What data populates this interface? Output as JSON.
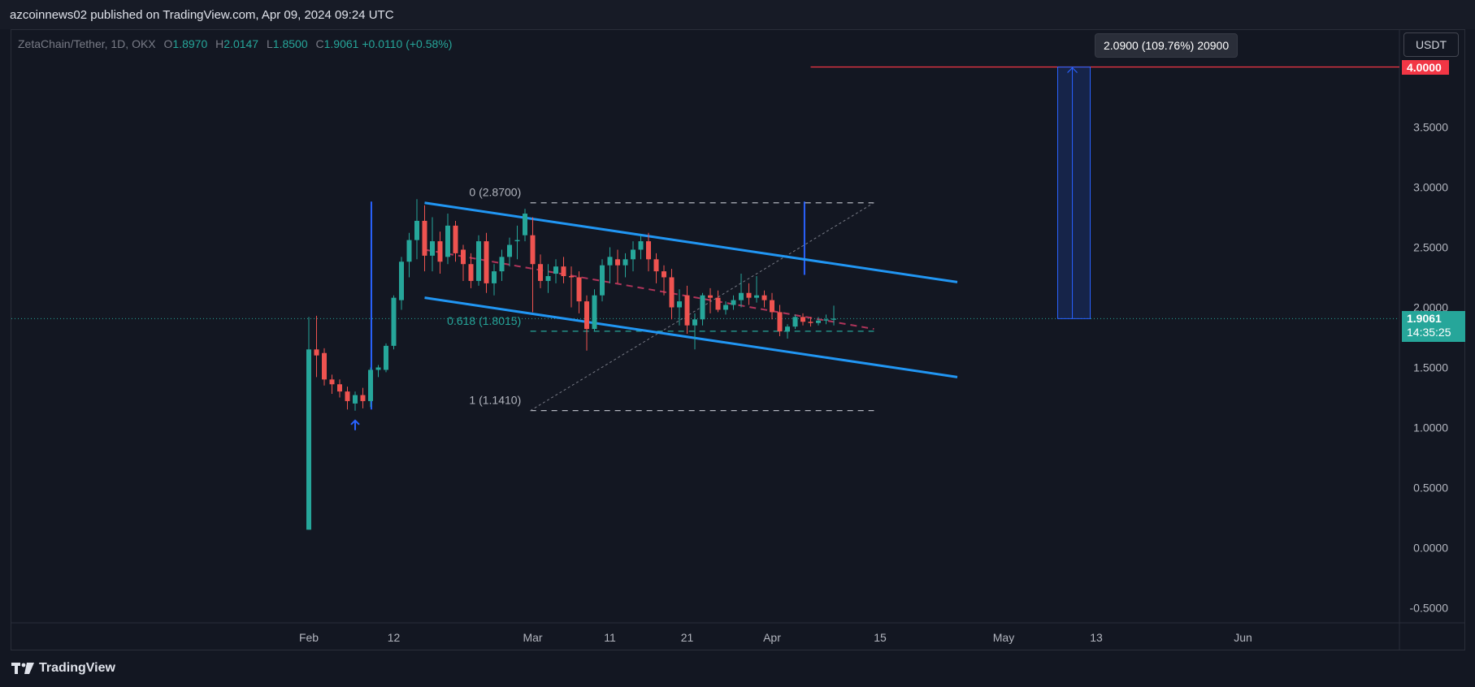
{
  "header": {
    "published_by": "azcoinnews02 published on TradingView.com, Apr 09, 2024 09:24 UTC"
  },
  "legend": {
    "symbol": "ZetaChain/Tether, 1D, OKX",
    "o_label": "O",
    "o_value": "1.8970",
    "h_label": "H",
    "h_value": "2.0147",
    "l_label": "L",
    "l_value": "1.8500",
    "c_label": "C",
    "c_value": "1.9061",
    "change": "+0.0110 (+0.58%)"
  },
  "toolbar": {
    "currency": "USDT"
  },
  "measure": {
    "label": "2.0900 (109.76%) 20900"
  },
  "price_tags": {
    "target": "4.0000",
    "last_price": "1.9061",
    "countdown": "14:35:25"
  },
  "fib_labels": {
    "level_0": "0 (2.8700)",
    "level_0618": "0.618 (1.8015)",
    "level_1": "1 (1.1410)"
  },
  "footer": {
    "brand": "TradingView"
  },
  "colors": {
    "background": "#131722",
    "bull": "#26a69a",
    "bear": "#ef5350",
    "channel": "#2196f3",
    "target": "#f23645"
  },
  "chart_data": {
    "type": "candlestick",
    "y_ticks": [
      "4.0000",
      "3.5000",
      "3.0000",
      "2.5000",
      "2.0000",
      "1.5000",
      "1.0000",
      "0.5000",
      "0.0000",
      "-0.5000"
    ],
    "ylim": [
      -0.5,
      4.0
    ],
    "x_ticks": [
      {
        "label": "Feb",
        "day": 0
      },
      {
        "label": "12",
        "day": 11
      },
      {
        "label": "Mar",
        "day": 29
      },
      {
        "label": "11",
        "day": 39
      },
      {
        "label": "21",
        "day": 49
      },
      {
        "label": "Apr",
        "day": 60
      },
      {
        "label": "15",
        "day": 74
      },
      {
        "label": "May",
        "day": 90
      },
      {
        "label": "13",
        "day": 102
      },
      {
        "label": "Jun",
        "day": 121
      }
    ],
    "candles": [
      {
        "day": 0,
        "o": 0.15,
        "h": 1.92,
        "l": 0.15,
        "c": 1.65
      },
      {
        "day": 1,
        "o": 1.65,
        "h": 1.93,
        "l": 1.42,
        "c": 1.6
      },
      {
        "day": 2,
        "o": 1.62,
        "h": 1.66,
        "l": 1.35,
        "c": 1.4
      },
      {
        "day": 3,
        "o": 1.4,
        "h": 1.44,
        "l": 1.28,
        "c": 1.36
      },
      {
        "day": 4,
        "o": 1.36,
        "h": 1.4,
        "l": 1.25,
        "c": 1.3
      },
      {
        "day": 5,
        "o": 1.3,
        "h": 1.34,
        "l": 1.15,
        "c": 1.22
      },
      {
        "day": 6,
        "o": 1.2,
        "h": 1.3,
        "l": 1.14,
        "c": 1.27
      },
      {
        "day": 7,
        "o": 1.27,
        "h": 1.33,
        "l": 1.16,
        "c": 1.22
      },
      {
        "day": 8,
        "o": 1.22,
        "h": 1.5,
        "l": 1.17,
        "c": 1.48
      },
      {
        "day": 9,
        "o": 1.48,
        "h": 1.52,
        "l": 1.42,
        "c": 1.5
      },
      {
        "day": 10,
        "o": 1.48,
        "h": 1.7,
        "l": 1.46,
        "c": 1.68
      },
      {
        "day": 11,
        "o": 1.68,
        "h": 2.1,
        "l": 1.65,
        "c": 2.08
      },
      {
        "day": 12,
        "o": 2.06,
        "h": 2.42,
        "l": 1.98,
        "c": 2.38
      },
      {
        "day": 13,
        "o": 2.38,
        "h": 2.62,
        "l": 2.25,
        "c": 2.56
      },
      {
        "day": 14,
        "o": 2.56,
        "h": 2.9,
        "l": 2.4,
        "c": 2.72
      },
      {
        "day": 15,
        "o": 2.72,
        "h": 2.85,
        "l": 2.3,
        "c": 2.43
      },
      {
        "day": 16,
        "o": 2.43,
        "h": 2.75,
        "l": 2.3,
        "c": 2.55
      },
      {
        "day": 17,
        "o": 2.55,
        "h": 2.63,
        "l": 2.28,
        "c": 2.38
      },
      {
        "day": 18,
        "o": 2.42,
        "h": 2.78,
        "l": 2.36,
        "c": 2.68
      },
      {
        "day": 19,
        "o": 2.68,
        "h": 2.72,
        "l": 2.38,
        "c": 2.45
      },
      {
        "day": 20,
        "o": 2.48,
        "h": 2.52,
        "l": 2.22,
        "c": 2.36
      },
      {
        "day": 21,
        "o": 2.36,
        "h": 2.45,
        "l": 2.16,
        "c": 2.22
      },
      {
        "day": 22,
        "o": 2.22,
        "h": 2.6,
        "l": 2.18,
        "c": 2.55
      },
      {
        "day": 23,
        "o": 2.55,
        "h": 2.62,
        "l": 2.12,
        "c": 2.2
      },
      {
        "day": 24,
        "o": 2.2,
        "h": 2.36,
        "l": 2.1,
        "c": 2.3
      },
      {
        "day": 25,
        "o": 2.3,
        "h": 2.48,
        "l": 2.22,
        "c": 2.42
      },
      {
        "day": 26,
        "o": 2.42,
        "h": 2.58,
        "l": 2.34,
        "c": 2.52
      },
      {
        "day": 27,
        "o": 2.55,
        "h": 2.68,
        "l": 2.4,
        "c": 2.56
      },
      {
        "day": 28,
        "o": 2.6,
        "h": 2.82,
        "l": 2.55,
        "c": 2.78
      },
      {
        "day": 29,
        "o": 2.6,
        "h": 2.75,
        "l": 1.96,
        "c": 2.36
      },
      {
        "day": 30,
        "o": 2.36,
        "h": 2.44,
        "l": 2.16,
        "c": 2.22
      },
      {
        "day": 31,
        "o": 2.22,
        "h": 2.36,
        "l": 2.12,
        "c": 2.26
      },
      {
        "day": 32,
        "o": 2.28,
        "h": 2.4,
        "l": 2.2,
        "c": 2.34
      },
      {
        "day": 33,
        "o": 2.34,
        "h": 2.42,
        "l": 2.2,
        "c": 2.26
      },
      {
        "day": 34,
        "o": 2.26,
        "h": 2.34,
        "l": 2.0,
        "c": 2.25
      },
      {
        "day": 35,
        "o": 2.25,
        "h": 2.3,
        "l": 1.95,
        "c": 2.05
      },
      {
        "day": 36,
        "o": 2.05,
        "h": 2.1,
        "l": 1.64,
        "c": 1.82
      },
      {
        "day": 37,
        "o": 1.82,
        "h": 2.15,
        "l": 1.8,
        "c": 2.1
      },
      {
        "day": 38,
        "o": 2.1,
        "h": 2.4,
        "l": 2.05,
        "c": 2.35
      },
      {
        "day": 39,
        "o": 2.35,
        "h": 2.5,
        "l": 2.2,
        "c": 2.42
      },
      {
        "day": 40,
        "o": 2.4,
        "h": 2.48,
        "l": 2.2,
        "c": 2.35
      },
      {
        "day": 41,
        "o": 2.35,
        "h": 2.45,
        "l": 2.25,
        "c": 2.4
      },
      {
        "day": 42,
        "o": 2.4,
        "h": 2.55,
        "l": 2.3,
        "c": 2.48
      },
      {
        "day": 43,
        "o": 2.48,
        "h": 2.6,
        "l": 2.4,
        "c": 2.55
      },
      {
        "day": 44,
        "o": 2.55,
        "h": 2.62,
        "l": 2.3,
        "c": 2.4
      },
      {
        "day": 45,
        "o": 2.4,
        "h": 2.45,
        "l": 2.2,
        "c": 2.3
      },
      {
        "day": 46,
        "o": 2.3,
        "h": 2.35,
        "l": 2.1,
        "c": 2.25
      },
      {
        "day": 47,
        "o": 2.25,
        "h": 2.32,
        "l": 1.9,
        "c": 2.0
      },
      {
        "day": 48,
        "o": 2.0,
        "h": 2.15,
        "l": 1.85,
        "c": 2.05
      },
      {
        "day": 49,
        "o": 2.1,
        "h": 2.18,
        "l": 1.78,
        "c": 1.85
      },
      {
        "day": 50,
        "o": 1.85,
        "h": 1.95,
        "l": 1.65,
        "c": 1.9
      },
      {
        "day": 51,
        "o": 1.9,
        "h": 2.12,
        "l": 1.85,
        "c": 2.1
      },
      {
        "day": 52,
        "o": 2.1,
        "h": 2.16,
        "l": 1.95,
        "c": 2.08
      },
      {
        "day": 53,
        "o": 2.08,
        "h": 2.14,
        "l": 1.96,
        "c": 1.98
      },
      {
        "day": 54,
        "o": 1.98,
        "h": 2.05,
        "l": 1.94,
        "c": 2.02
      },
      {
        "day": 55,
        "o": 2.02,
        "h": 2.1,
        "l": 1.98,
        "c": 2.06
      },
      {
        "day": 56,
        "o": 2.06,
        "h": 2.28,
        "l": 2.0,
        "c": 2.12
      },
      {
        "day": 57,
        "o": 2.12,
        "h": 2.2,
        "l": 2.02,
        "c": 2.08
      },
      {
        "day": 58,
        "o": 2.08,
        "h": 2.26,
        "l": 2.04,
        "c": 2.1
      },
      {
        "day": 59,
        "o": 2.1,
        "h": 2.14,
        "l": 2.0,
        "c": 2.06
      },
      {
        "day": 60,
        "o": 2.06,
        "h": 2.12,
        "l": 1.9,
        "c": 1.96
      },
      {
        "day": 61,
        "o": 1.96,
        "h": 2.02,
        "l": 1.76,
        "c": 1.8
      },
      {
        "day": 62,
        "o": 1.8,
        "h": 1.86,
        "l": 1.74,
        "c": 1.84
      },
      {
        "day": 63,
        "o": 1.84,
        "h": 1.94,
        "l": 1.82,
        "c": 1.92
      },
      {
        "day": 64,
        "o": 1.92,
        "h": 1.95,
        "l": 1.85,
        "c": 1.88
      },
      {
        "day": 65,
        "o": 1.88,
        "h": 1.92,
        "l": 1.84,
        "c": 1.87
      },
      {
        "day": 66,
        "o": 1.87,
        "h": 1.92,
        "l": 1.85,
        "c": 1.89
      },
      {
        "day": 67,
        "o": 1.89,
        "h": 1.94,
        "l": 1.86,
        "c": 1.9
      },
      {
        "day": 68,
        "o": 1.897,
        "h": 2.0147,
        "l": 1.85,
        "c": 1.9061
      }
    ],
    "last_price": 1.9061,
    "target_price": 4.0,
    "channel": {
      "upper": [
        {
          "day": 15,
          "price": 2.87
        },
        {
          "day": 84,
          "price": 2.21
        }
      ],
      "lower": [
        {
          "day": 15,
          "price": 2.08
        },
        {
          "day": 84,
          "price": 1.42
        }
      ]
    },
    "fibonacci": [
      {
        "level": "0",
        "price": 2.87
      },
      {
        "level": "0.618",
        "price": 1.8015
      },
      {
        "level": "1",
        "price": 1.141
      }
    ]
  }
}
